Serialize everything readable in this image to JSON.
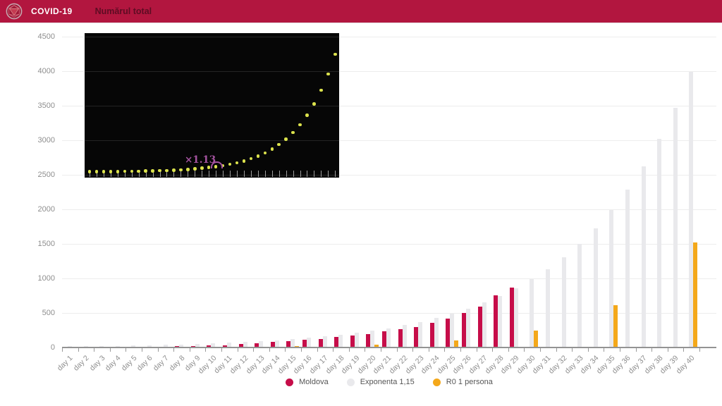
{
  "header": {
    "app_title": "COVID-19",
    "page_title": "Numărul total",
    "bg_color": "#b2163f"
  },
  "chart_data": [
    {
      "type": "bar",
      "title": "Numărul total",
      "categories": [
        "day 1",
        "day 2",
        "day 3",
        "day 4",
        "day 5",
        "day 6",
        "day 7",
        "day 8",
        "day 9",
        "day 10",
        "day 11",
        "day 12",
        "day 13",
        "day 14",
        "day 15",
        "day 16",
        "day 17",
        "day 18",
        "day 19",
        "day 20",
        "day 21",
        "day 22",
        "day 23",
        "day 24",
        "day 25",
        "day 26",
        "day 27",
        "day 28",
        "day 29",
        "day 30",
        "day 31",
        "day 32",
        "day 33",
        "day 34",
        "day 35",
        "day 36",
        "day 37",
        "day 38",
        "day 39",
        "day 40"
      ],
      "series": [
        {
          "name": "Moldova",
          "color": "#c60d49",
          "values": [
            1,
            1,
            2,
            3,
            4,
            6,
            12,
            23,
            23,
            30,
            30,
            49,
            66,
            80,
            94,
            109,
            125,
            149,
            177,
            199,
            231,
            263,
            298,
            353,
            423,
            505,
            591,
            752,
            864,
            null,
            null,
            null,
            null,
            null,
            null,
            null,
            null,
            null,
            null,
            null
          ]
        },
        {
          "name": "Exponenta 1,15",
          "color": "#e9e9ec",
          "values": [
            17,
            20,
            23,
            26,
            30,
            35,
            40,
            46,
            52,
            60,
            69,
            80,
            92,
            105,
            121,
            139,
            160,
            185,
            212,
            244,
            281,
            323,
            371,
            427,
            491,
            565,
            649,
            747,
            859,
            988,
            1136,
            1306,
            1502,
            1727,
            1986,
            2284,
            2627,
            3021,
            3474,
            3995
          ]
        },
        {
          "name": "R0 1 persona",
          "color": "#f4a81a",
          "values": [
            null,
            null,
            null,
            null,
            3,
            null,
            null,
            null,
            null,
            6,
            null,
            null,
            null,
            null,
            16,
            null,
            null,
            null,
            null,
            39,
            null,
            null,
            null,
            null,
            98,
            null,
            null,
            null,
            null,
            244,
            null,
            null,
            null,
            null,
            610,
            null,
            null,
            null,
            null,
            1526
          ]
        }
      ],
      "ylim": [
        0,
        4500
      ],
      "ytick_step": 500,
      "ytick_labels": [
        "0",
        "500",
        "1000",
        "1500",
        "2000",
        "2500",
        "3000",
        "3500",
        "4000",
        "4500"
      ],
      "grid": "horizontal",
      "legend_position": "bottom-center",
      "xlabel": "",
      "ylabel": ""
    },
    {
      "type": "scatter",
      "description": "inset exponential growth preview, black background, yellow dots",
      "bg_color": "#060606",
      "dot_color": "#dbe24c",
      "num_points": 36,
      "growth_factor": 1.13,
      "annotation": "×1.13",
      "annotation_color": "#a4539f"
    }
  ]
}
